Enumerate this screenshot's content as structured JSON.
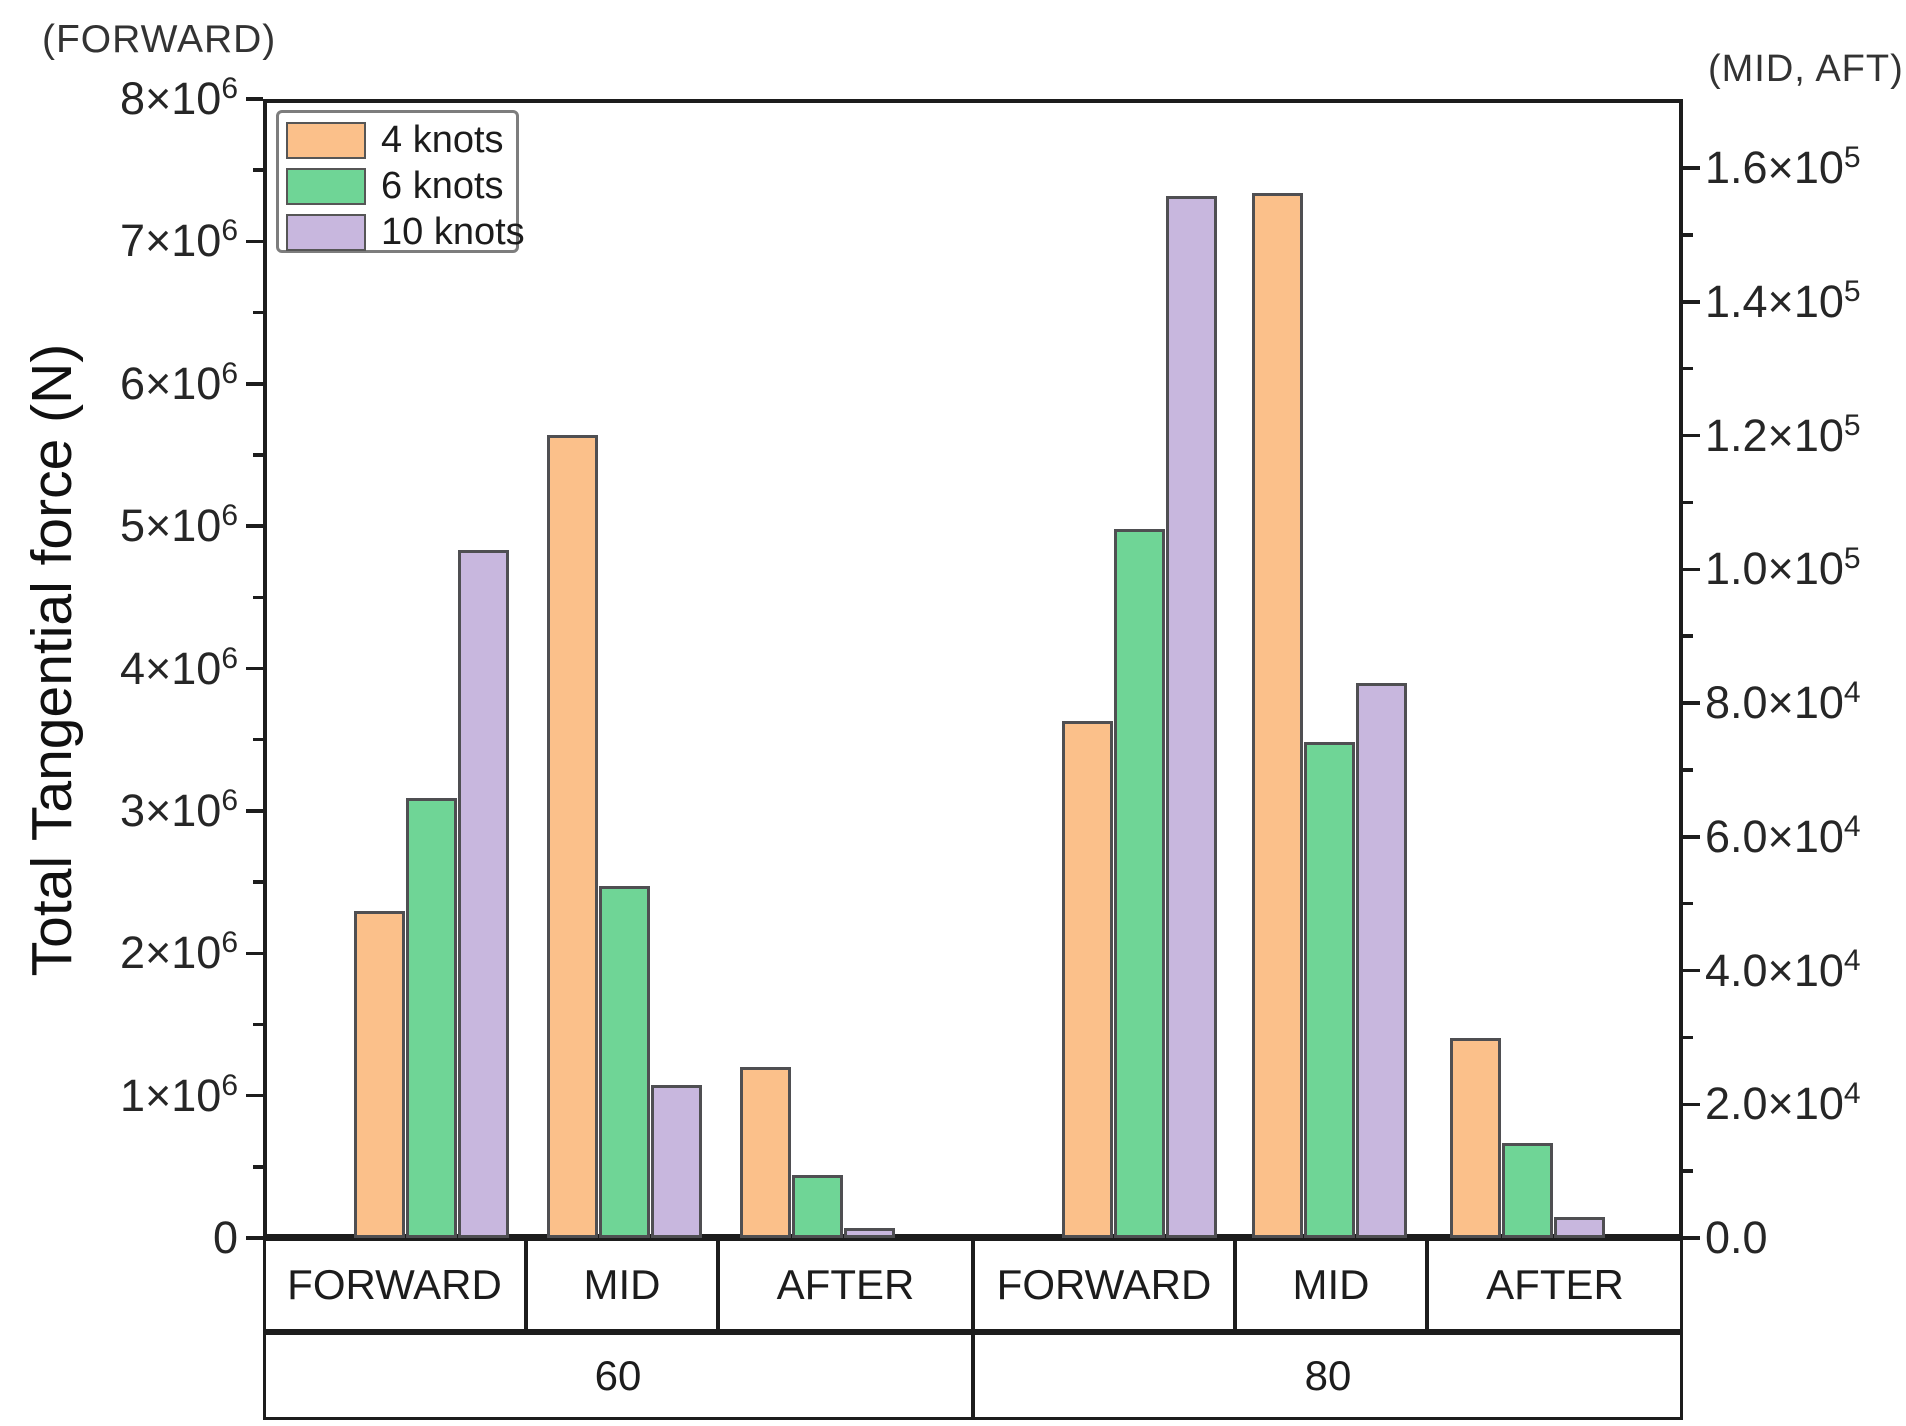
{
  "figure": {
    "left_axis_annotation": "(FORWARD)",
    "right_axis_annotation": "(MID, AFT)",
    "y_axis_title": "Total Tangential force (N)"
  },
  "legend": {
    "items": [
      {
        "label": "4 knots",
        "color": "#fbc08a"
      },
      {
        "label": "6 knots",
        "color": "#6fd596"
      },
      {
        "label": "10 knots",
        "color": "#c8b7de"
      }
    ]
  },
  "chart_data": {
    "type": "bar",
    "title": "",
    "series": [
      {
        "name": "4 knots",
        "color": "#fbc08a"
      },
      {
        "name": "6 knots",
        "color": "#6fd596"
      },
      {
        "name": "10 knots",
        "color": "#c8b7de"
      }
    ],
    "x_groups": [
      {
        "speed": "60",
        "sections": [
          "FORWARD",
          "MID",
          "AFTER"
        ]
      },
      {
        "speed": "80",
        "sections": [
          "FORWARD",
          "MID",
          "AFTER"
        ]
      }
    ],
    "left_axis": {
      "annotation": "(FORWARD)",
      "title": "Total Tangential force (N)",
      "applies_to": "FORWARD bars",
      "range": [
        0,
        8000000
      ],
      "grid": false,
      "major_ticks": [
        {
          "v": 8000000,
          "m": "8×10",
          "s": "6"
        },
        {
          "v": 7000000,
          "m": "7×10",
          "s": "6"
        },
        {
          "v": 6000000,
          "m": "6×10",
          "s": "6"
        },
        {
          "v": 5000000,
          "m": "5×10",
          "s": "6"
        },
        {
          "v": 4000000,
          "m": "4×10",
          "s": "6"
        },
        {
          "v": 3000000,
          "m": "3×10",
          "s": "6"
        },
        {
          "v": 2000000,
          "m": "2×10",
          "s": "6"
        },
        {
          "v": 1000000,
          "m": "1×10",
          "s": "6"
        },
        {
          "v": 0,
          "m": "0",
          "s": ""
        }
      ],
      "minor_tick_values": [
        500000,
        1500000,
        2500000,
        3500000,
        4500000,
        5500000,
        6500000,
        7500000
      ]
    },
    "right_axis": {
      "annotation": "(MID, AFT)",
      "applies_to": "MID and AFTER bars",
      "range_labeled": [
        0,
        160000
      ],
      "value_at_frame_top": 170300,
      "major_ticks": [
        {
          "v": 160000,
          "m": "1.6×10",
          "s": "5"
        },
        {
          "v": 140000,
          "m": "1.4×10",
          "s": "5"
        },
        {
          "v": 120000,
          "m": "1.2×10",
          "s": "5"
        },
        {
          "v": 100000,
          "m": "1.0×10",
          "s": "5"
        },
        {
          "v": 80000,
          "m": "8.0×10",
          "s": "4"
        },
        {
          "v": 60000,
          "m": "6.0×10",
          "s": "4"
        },
        {
          "v": 40000,
          "m": "4.0×10",
          "s": "4"
        },
        {
          "v": 20000,
          "m": "2.0×10",
          "s": "4"
        },
        {
          "v": 0,
          "m": "0.0",
          "s": ""
        }
      ],
      "minor_tick_values": [
        10000,
        30000,
        50000,
        70000,
        90000,
        110000,
        130000,
        150000
      ]
    },
    "bars": [
      {
        "speed": "60",
        "section": "FORWARD",
        "axis": "left",
        "values": [
          2300000,
          3090000,
          4830000
        ]
      },
      {
        "speed": "60",
        "section": "MID",
        "axis": "right",
        "values": [
          120000,
          52600,
          22900
        ]
      },
      {
        "speed": "60",
        "section": "AFTER",
        "axis": "right",
        "values": [
          25600,
          9400,
          1500
        ]
      },
      {
        "speed": "80",
        "section": "FORWARD",
        "axis": "left",
        "values": [
          3630000,
          4980000,
          7320000
        ]
      },
      {
        "speed": "80",
        "section": "MID",
        "axis": "right",
        "values": [
          156200,
          74200,
          83000
        ]
      },
      {
        "speed": "80",
        "section": "AFTER",
        "axis": "right",
        "values": [
          29900,
          14200,
          3100
        ]
      }
    ]
  }
}
